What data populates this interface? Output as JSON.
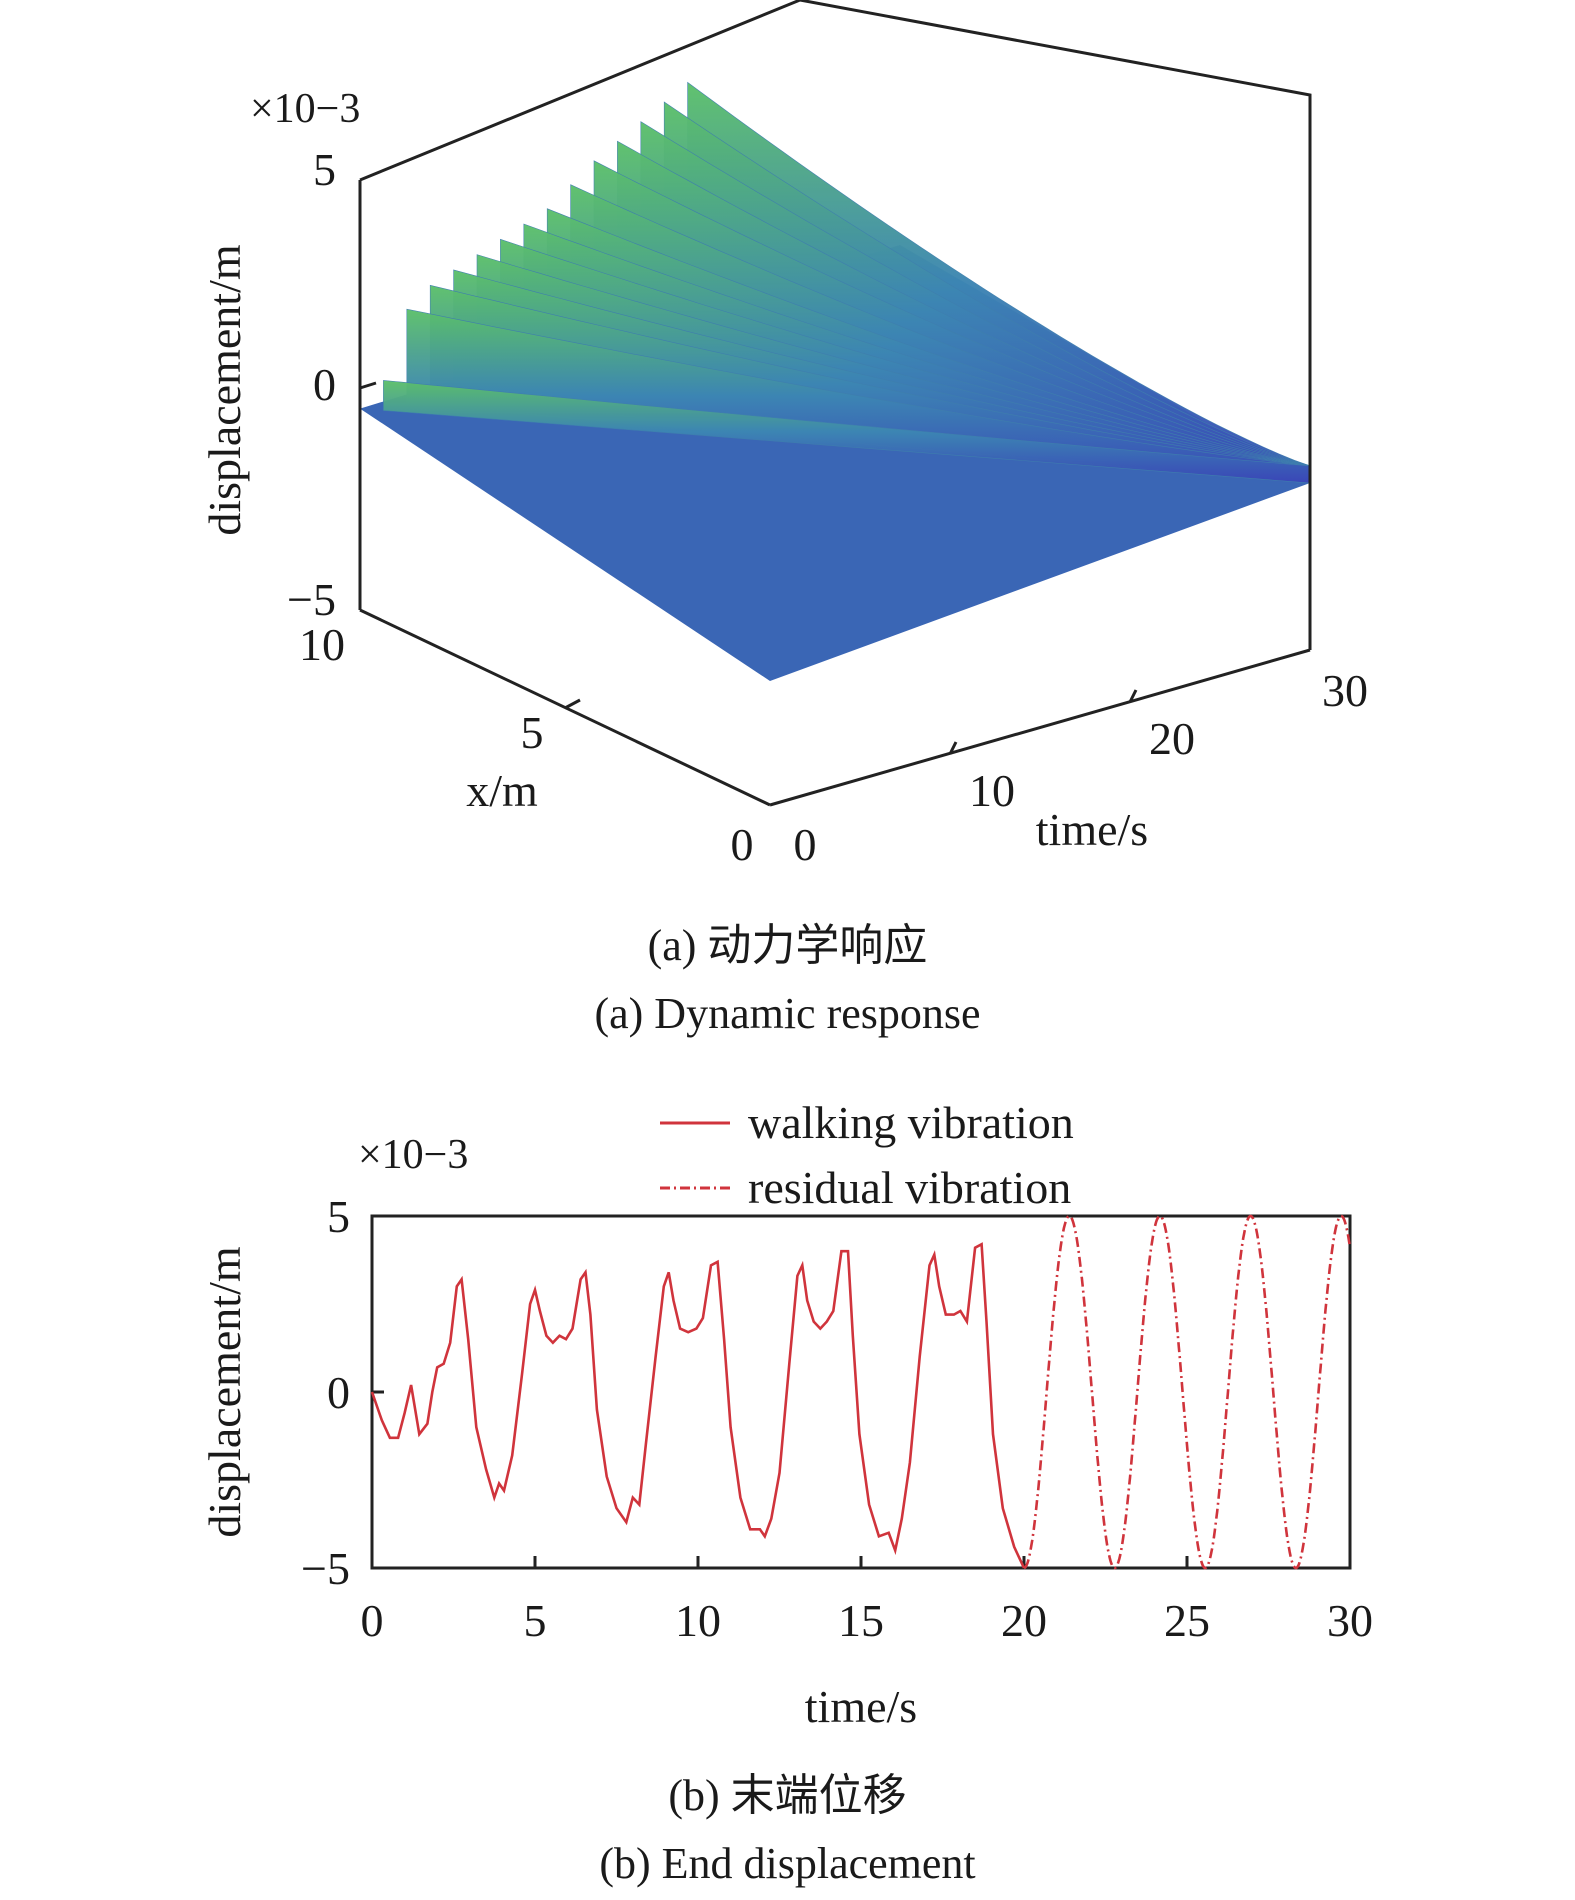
{
  "chart_data": [
    {
      "type": "surface3d",
      "multiplier": "×10−3",
      "zlabel": "displacement/m",
      "zticks": [
        "5",
        "0",
        "−5"
      ],
      "zlim": [
        -5,
        5
      ],
      "xlabel": "x/m",
      "xticks": [
        "10",
        "5",
        "0"
      ],
      "xlim": [
        0,
        10
      ],
      "tlabel": "time/s",
      "tticks": [
        "0",
        "10",
        "20",
        "30"
      ],
      "tlim": [
        0,
        30
      ],
      "ridge_times": [
        1.3,
        2.6,
        3.9,
        5.2,
        6.5,
        7.8,
        9.1,
        10.4,
        11.7,
        13.0,
        14.3,
        15.6,
        16.9,
        18.2
      ],
      "ridge_peaks": [
        0.3,
        1.8,
        2.2,
        2.4,
        2.6,
        2.8,
        3.0,
        3.2,
        3.6,
        4.0,
        4.3,
        4.6,
        4.9,
        5.2
      ],
      "colors": {
        "low": "#3a47b8",
        "mid": "#3d86b3",
        "high": "#5cc06a"
      },
      "caption_cn": "(a) 动力学响应",
      "caption_en": "(a) Dynamic response"
    },
    {
      "type": "line",
      "multiplier": "×10−3",
      "ylabel": "displacement/m",
      "xlabel": "time/s",
      "xlim": [
        0,
        30
      ],
      "ylim": [
        -5,
        5
      ],
      "xticks": [
        "0",
        "5",
        "10",
        "15",
        "20",
        "25",
        "30"
      ],
      "yticks": [
        "5",
        "0",
        "−5"
      ],
      "series": [
        {
          "name": "walking vibration",
          "color": "#d0343c",
          "style": "solid",
          "x": [
            0,
            0.3,
            0.55,
            0.8,
            1.0,
            1.2,
            1.45,
            1.7,
            1.85,
            2.0,
            2.2,
            2.4,
            2.6,
            2.75,
            2.95,
            3.2,
            3.5,
            3.75,
            3.9,
            4.05,
            4.3,
            4.6,
            4.85,
            5.0,
            5.15,
            5.35,
            5.55,
            5.75,
            5.95,
            6.15,
            6.4,
            6.55,
            6.7,
            6.9,
            7.2,
            7.5,
            7.8,
            8.0,
            8.2,
            8.4,
            8.7,
            8.95,
            9.1,
            9.25,
            9.45,
            9.7,
            9.95,
            10.15,
            10.4,
            10.6,
            10.8,
            11.0,
            11.3,
            11.6,
            11.9,
            12.05,
            12.25,
            12.5,
            12.8,
            13.05,
            13.2,
            13.35,
            13.55,
            13.75,
            13.95,
            14.15,
            14.4,
            14.6,
            14.75,
            14.95,
            15.25,
            15.55,
            15.85,
            16.05,
            16.25,
            16.5,
            16.8,
            17.1,
            17.25,
            17.4,
            17.6,
            17.85,
            18.05,
            18.25,
            18.5,
            18.7,
            18.85,
            19.05,
            19.35,
            19.7,
            20.0
          ],
          "y": [
            0,
            -0.8,
            -1.3,
            -1.3,
            -0.6,
            0.2,
            -1.2,
            -0.9,
            0.0,
            0.7,
            0.8,
            1.4,
            3.0,
            3.2,
            1.5,
            -1.0,
            -2.2,
            -3.0,
            -2.6,
            -2.8,
            -1.8,
            0.5,
            2.5,
            2.9,
            2.3,
            1.6,
            1.4,
            1.6,
            1.5,
            1.8,
            3.2,
            3.4,
            2.2,
            -0.5,
            -2.4,
            -3.3,
            -3.7,
            -3.0,
            -3.2,
            -1.5,
            1.0,
            3.0,
            3.4,
            2.6,
            1.8,
            1.7,
            1.8,
            2.1,
            3.6,
            3.7,
            1.5,
            -1.0,
            -3.0,
            -3.9,
            -3.9,
            -4.1,
            -3.6,
            -2.3,
            0.8,
            3.3,
            3.6,
            2.6,
            2.0,
            1.8,
            2.0,
            2.3,
            4.0,
            4.0,
            1.6,
            -1.2,
            -3.2,
            -4.1,
            -4.0,
            -4.5,
            -3.6,
            -2.0,
            1.0,
            3.6,
            3.9,
            3.0,
            2.2,
            2.2,
            2.3,
            2.0,
            4.1,
            4.2,
            2.0,
            -1.2,
            -3.3,
            -4.4,
            -5.0
          ]
        },
        {
          "name": "residual vibration",
          "color": "#d0343c",
          "style": "dashdot",
          "wave": {
            "t_start": 20.0,
            "t_end": 30.0,
            "amplitude": 5.0,
            "period": 2.78,
            "phase_start": "trough"
          }
        }
      ],
      "caption_cn": "(b) 末端位移",
      "caption_en": "(b) End displacement"
    }
  ]
}
